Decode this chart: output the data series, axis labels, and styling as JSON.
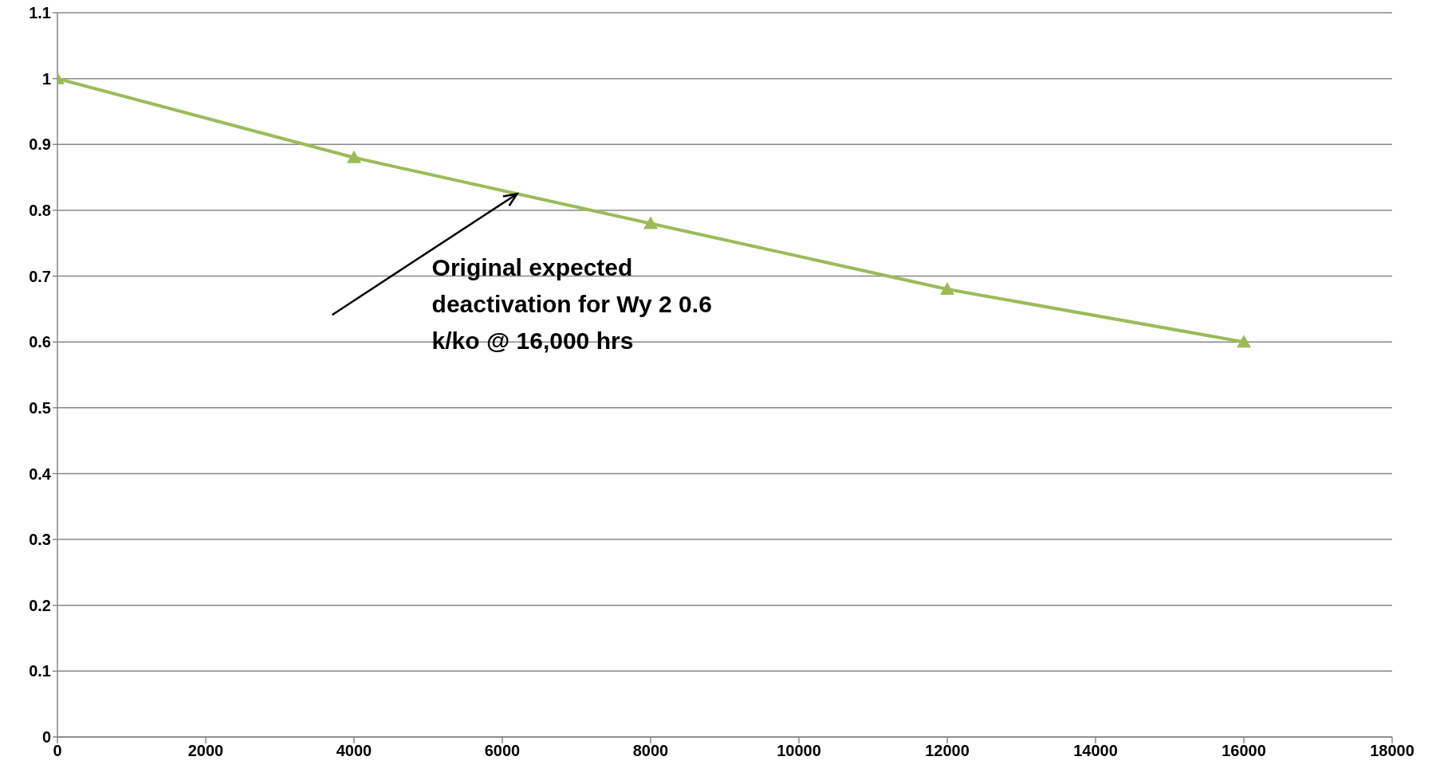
{
  "chart_data": {
    "type": "line",
    "x": [
      0,
      4000,
      8000,
      12000,
      16000
    ],
    "series": [
      {
        "color": "#9bbb59",
        "values": [
          1,
          0.88,
          0.78,
          0.68,
          0.6
        ]
      }
    ],
    "xlim": [
      0,
      18000
    ],
    "xticks": [
      0,
      2000,
      4000,
      6000,
      8000,
      10000,
      12000,
      14000,
      16000,
      18000
    ],
    "ylim": [
      0,
      1.1
    ],
    "yticks": [
      0,
      0.1,
      0.2,
      0.3,
      0.4,
      0.5,
      0.6,
      0.7,
      0.8,
      0.9,
      1,
      1.1
    ],
    "grid": "y",
    "marker": "triangle",
    "line_style": "solid",
    "annotations": [
      {
        "text": "Original expected deactivation for Wy 2 0.6 k/ko @ 16,000 hrs",
        "x": 6200,
        "y": 0.825
      }
    ]
  }
}
